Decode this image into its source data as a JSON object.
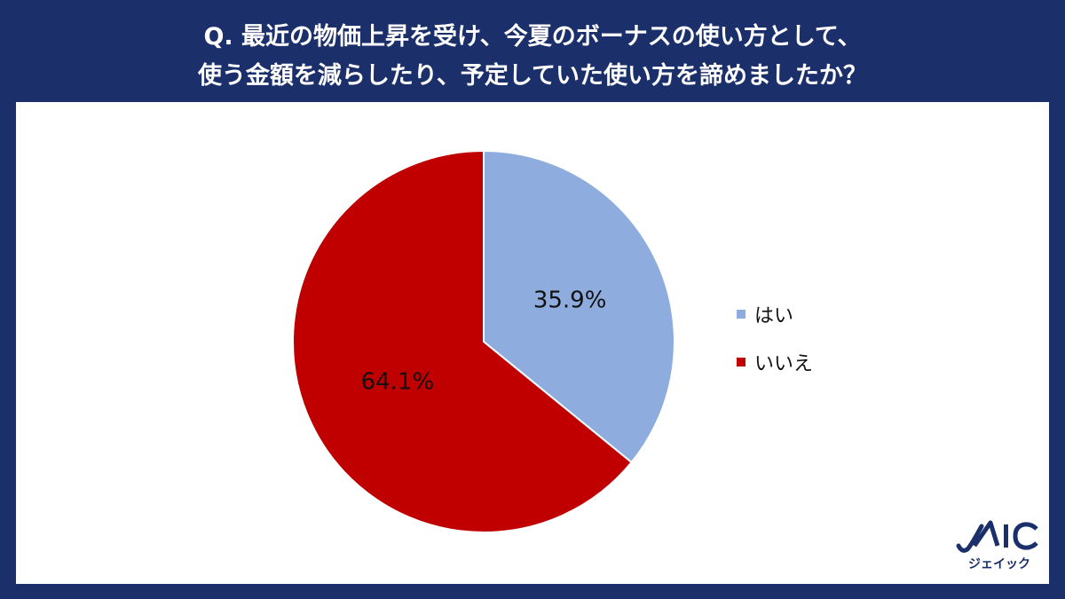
{
  "title": {
    "line1": "Q. 最近の物価上昇を受け、今夏のボーナスの使い方として、",
    "line2": "使う金額を減らしたり、予定していた使い方を諦めましたか？"
  },
  "chart_data": {
    "type": "pie",
    "categories": [
      "はい",
      "いいえ"
    ],
    "values": [
      35.9,
      64.1
    ],
    "labels": [
      "35.9%",
      "64.1%"
    ],
    "colors": [
      "#8eacdd",
      "#c00000"
    ],
    "legend_placement": "right"
  },
  "legend": {
    "items": [
      {
        "label": "はい",
        "color": "#8eacdd"
      },
      {
        "label": "いいえ",
        "color": "#c00000"
      }
    ]
  },
  "logo": {
    "text": "JAIC",
    "subtitle": "ジェイック",
    "color": "#1b2f6b"
  },
  "colors": {
    "background": "#1b2f6b",
    "panel": "#ffffff"
  }
}
